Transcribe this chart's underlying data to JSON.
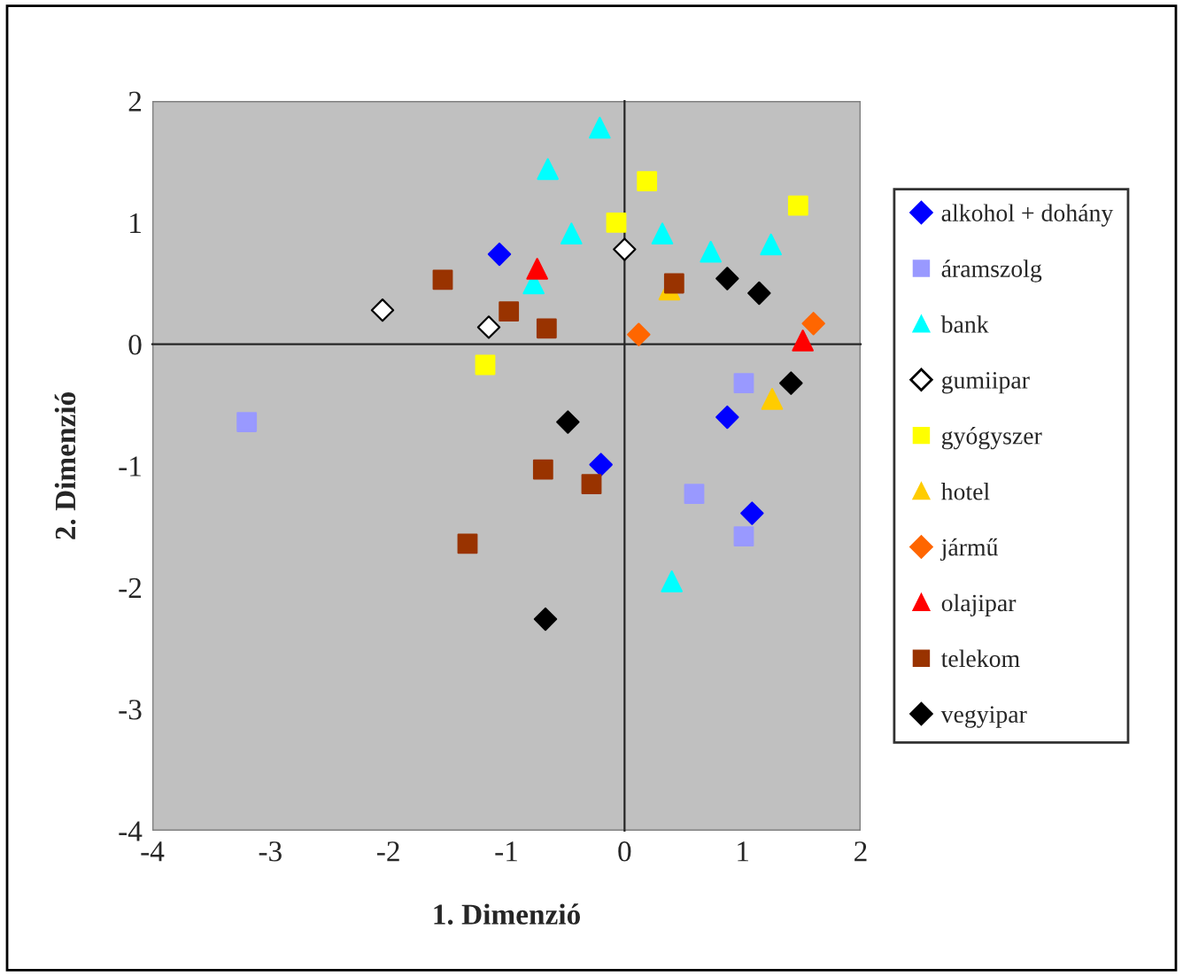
{
  "chart_data": {
    "type": "scatter",
    "xlabel": "1. Dimenzió",
    "ylabel": "2. Dimenzió",
    "xlim": [
      -4,
      2
    ],
    "ylim": [
      -4,
      2
    ],
    "xticks": [
      -4,
      -3,
      -2,
      -1,
      0,
      1,
      2
    ],
    "yticks": [
      -4,
      -3,
      -2,
      -1,
      0,
      1,
      2
    ],
    "legend": "right",
    "series": [
      {
        "name": "alkohol + dohány",
        "color": "#0000ff",
        "marker": "diamond",
        "x": [
          -1.06,
          0.87,
          -0.2,
          1.08
        ],
        "values": [
          0.74,
          -0.6,
          -0.99,
          -1.39
        ]
      },
      {
        "name": "áramszolg",
        "color": "#9999ff",
        "marker": "square",
        "x": [
          1.01,
          -3.2,
          0.59,
          1.01
        ],
        "values": [
          -0.32,
          -0.64,
          -1.23,
          -1.58
        ]
      },
      {
        "name": "bank",
        "color": "#00ffff",
        "marker": "triangle",
        "x": [
          -0.21,
          -0.65,
          -0.45,
          -0.77,
          0.32,
          0.73,
          1.24,
          0.4
        ],
        "values": [
          1.78,
          1.44,
          0.91,
          0.5,
          0.91,
          0.76,
          0.82,
          -1.95
        ]
      },
      {
        "name": "gumiipar",
        "color": "#ffffff",
        "marker": "diamond",
        "x": [
          0.0,
          -2.05,
          -1.15
        ],
        "values": [
          0.78,
          0.28,
          0.14
        ]
      },
      {
        "name": "gyógyszer",
        "color": "#ffff00",
        "marker": "square",
        "x": [
          0.19,
          -0.07,
          1.47,
          -1.18
        ],
        "values": [
          1.34,
          1.0,
          1.14,
          -0.17
        ]
      },
      {
        "name": "hotel",
        "color": "#ffcc00",
        "marker": "triangle",
        "x": [
          0.38,
          1.25
        ],
        "values": [
          0.45,
          -0.45
        ]
      },
      {
        "name": "jármű",
        "color": "#ff6600",
        "marker": "diamond",
        "x": [
          0.12,
          1.6
        ],
        "values": [
          0.08,
          0.17
        ]
      },
      {
        "name": "olajipar",
        "color": "#ff0000",
        "marker": "triangle",
        "x": [
          -0.74,
          1.51
        ],
        "values": [
          0.62,
          0.03
        ]
      },
      {
        "name": "telekom",
        "color": "#993300",
        "marker": "square",
        "x": [
          -1.54,
          -0.98,
          -0.66,
          0.42,
          -0.69,
          -0.28,
          -1.33
        ],
        "values": [
          0.53,
          0.27,
          0.13,
          0.5,
          -1.03,
          -1.15,
          -1.64
        ]
      },
      {
        "name": "vegyipar",
        "color": "#000000",
        "marker": "diamond",
        "x": [
          0.87,
          1.14,
          1.41,
          -0.48,
          -0.67
        ],
        "values": [
          0.54,
          0.42,
          -0.32,
          -0.64,
          -2.26
        ]
      }
    ]
  }
}
